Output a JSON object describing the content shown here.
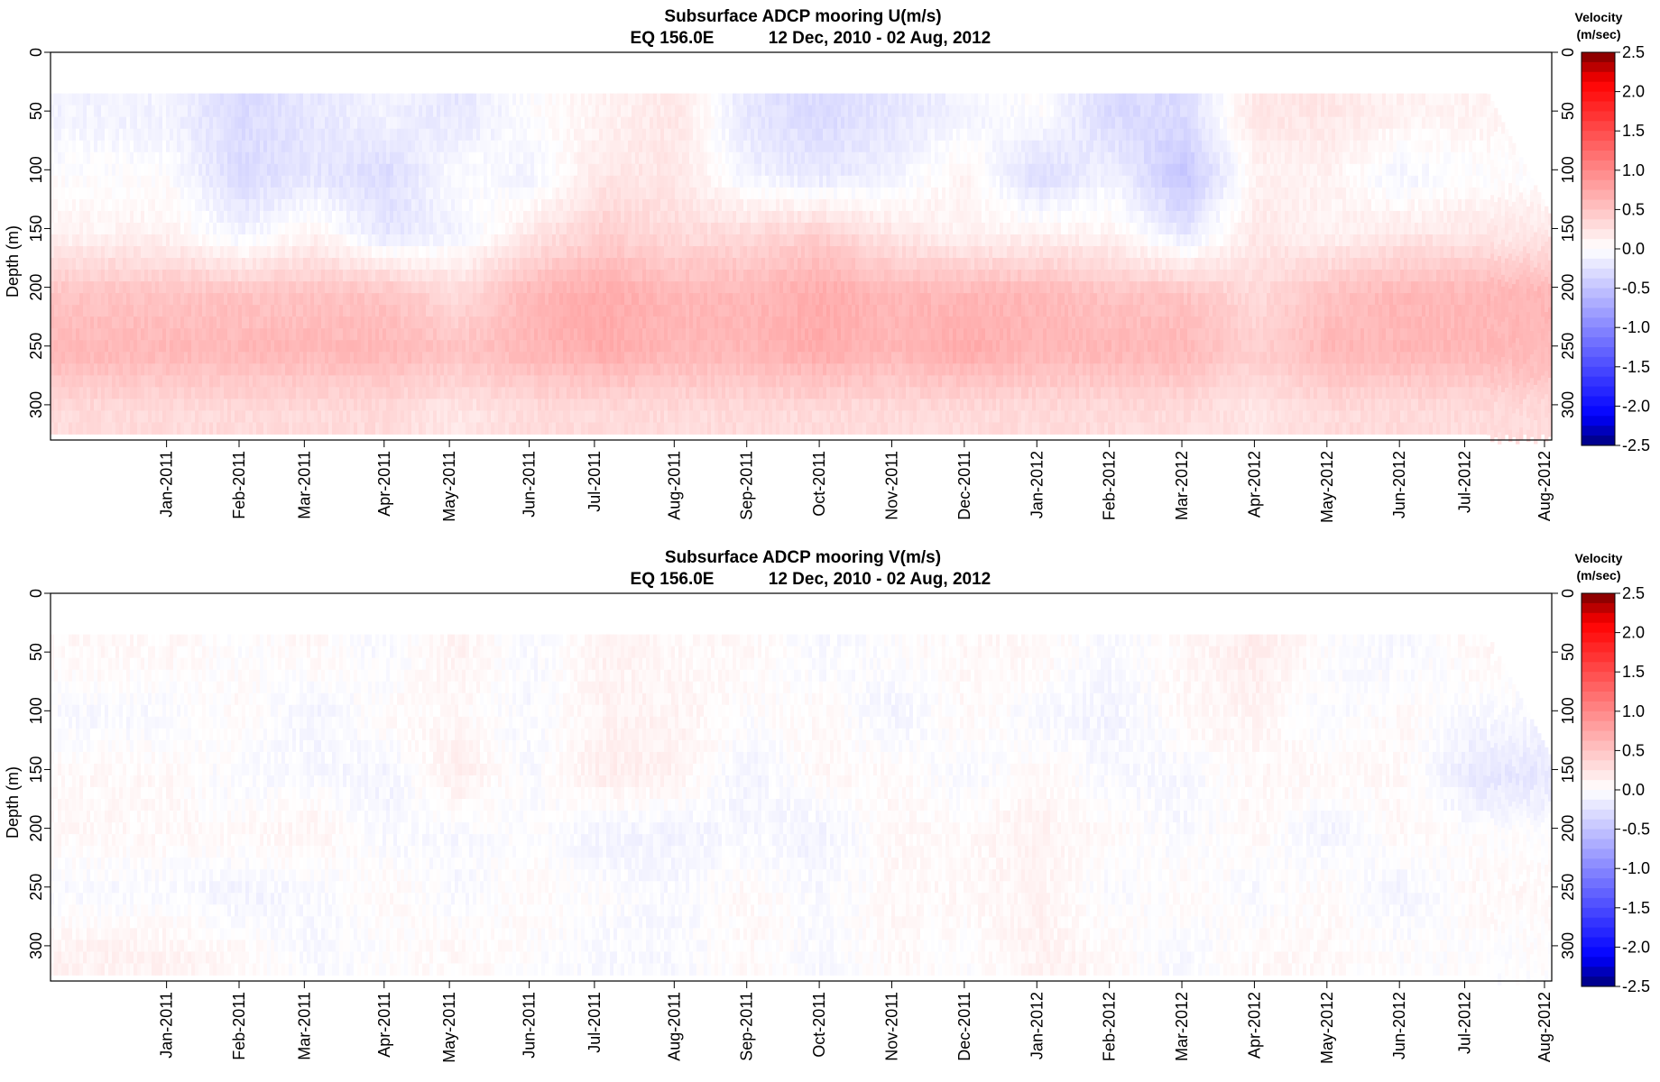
{
  "chart_data": [
    {
      "type": "heatmap",
      "title": "Subsurface ADCP mooring U(m/s)",
      "subtitle_location": "EQ 156.0E",
      "subtitle_period": "12 Dec, 2010 - 02 Aug, 2012",
      "ylabel": "Depth (m)",
      "ylim": [
        330,
        0
      ],
      "yticks": [
        "0",
        "50",
        "100",
        "150",
        "200",
        "250",
        "300"
      ],
      "xticks": [
        "Jan-2011",
        "Feb-2011",
        "Mar-2011",
        "Apr-2011",
        "May-2011",
        "Jun-2011",
        "Jul-2011",
        "Aug-2011",
        "Sep-2011",
        "Oct-2011",
        "Nov-2011",
        "Dec-2011",
        "Jan-2012",
        "Feb-2012",
        "Mar-2012",
        "Apr-2012",
        "May-2012",
        "Jun-2012",
        "Jul-2012",
        "Aug-2012"
      ],
      "xtick_months": [
        1.6,
        2.6,
        3.5,
        4.6,
        5.5,
        6.6,
        7.5,
        8.6,
        9.6,
        10.6,
        11.6,
        12.6,
        13.6,
        14.6,
        15.6,
        16.6,
        17.6,
        18.6,
        19.5,
        20.6
      ],
      "xlim_months": [
        0,
        20.7
      ],
      "data_depth_range": [
        35,
        325
      ],
      "colorbar": {
        "title": "Velocity",
        "unit": "(m/sec)",
        "range": [
          -2.5,
          2.5
        ],
        "ticks": [
          "2.5",
          "2.0",
          "1.5",
          "1.0",
          "0.5",
          "0.0",
          "-0.5",
          "-1.0",
          "-1.5",
          "-2.0",
          "-2.5"
        ]
      },
      "depth_levels": [
        50,
        100,
        150,
        200,
        250,
        300
      ],
      "months": [
        "Jan-2011",
        "Feb-2011",
        "Mar-2011",
        "Apr-2011",
        "May-2011",
        "Jun-2011",
        "Jul-2011",
        "Aug-2011",
        "Sep-2011",
        "Oct-2011",
        "Nov-2011",
        "Dec-2011",
        "Jan-2012",
        "Feb-2012",
        "Mar-2012",
        "Apr-2012",
        "May-2012",
        "Jun-2012",
        "Jul-2012"
      ],
      "values": [
        [
          -0.1,
          -0.3,
          -0.2,
          -0.1,
          -0.2,
          0.0,
          0.1,
          0.2,
          -0.2,
          -0.3,
          -0.2,
          -0.1,
          0.0,
          -0.3,
          -0.3,
          0.2,
          0.2,
          0.1,
          0.1
        ],
        [
          0.0,
          -0.3,
          -0.2,
          -0.3,
          0.0,
          -0.1,
          0.2,
          0.2,
          -0.1,
          -0.2,
          -0.1,
          0.1,
          -0.3,
          -0.1,
          -0.5,
          0.1,
          0.1,
          -0.1,
          0.0
        ],
        [
          0.1,
          -0.1,
          0.1,
          -0.2,
          -0.1,
          0.2,
          0.4,
          0.3,
          0.3,
          0.4,
          0.2,
          0.1,
          0.1,
          0.1,
          -0.2,
          0.2,
          0.1,
          0.2,
          0.2
        ],
        [
          0.5,
          0.5,
          0.5,
          0.5,
          0.3,
          0.6,
          0.7,
          0.6,
          0.6,
          0.7,
          0.6,
          0.6,
          0.6,
          0.5,
          0.5,
          0.3,
          0.5,
          0.6,
          0.6
        ],
        [
          0.6,
          0.6,
          0.6,
          0.6,
          0.5,
          0.6,
          0.7,
          0.6,
          0.6,
          0.7,
          0.6,
          0.7,
          0.6,
          0.6,
          0.6,
          0.4,
          0.6,
          0.6,
          0.6
        ],
        [
          0.3,
          0.3,
          0.3,
          0.3,
          0.2,
          0.3,
          0.3,
          0.3,
          0.3,
          0.3,
          0.3,
          0.3,
          0.3,
          0.3,
          0.3,
          0.2,
          0.3,
          0.3,
          0.3
        ]
      ]
    },
    {
      "type": "heatmap",
      "title": "Subsurface ADCP mooring V(m/s)",
      "subtitle_location": "EQ 156.0E",
      "subtitle_period": "12 Dec, 2010 - 02 Aug, 2012",
      "ylabel": "Depth (m)",
      "ylim": [
        330,
        0
      ],
      "yticks": [
        "0",
        "50",
        "100",
        "150",
        "200",
        "250",
        "300"
      ],
      "xticks": [
        "Jan-2011",
        "Feb-2011",
        "Mar-2011",
        "Apr-2011",
        "May-2011",
        "Jun-2011",
        "Jul-2011",
        "Aug-2011",
        "Sep-2011",
        "Oct-2011",
        "Nov-2011",
        "Dec-2011",
        "Jan-2012",
        "Feb-2012",
        "Mar-2012",
        "Apr-2012",
        "May-2012",
        "Jun-2012",
        "Jul-2012",
        "Aug-2012"
      ],
      "xtick_months": [
        1.6,
        2.6,
        3.5,
        4.6,
        5.5,
        6.6,
        7.5,
        8.6,
        9.6,
        10.6,
        11.6,
        12.6,
        13.6,
        14.6,
        15.6,
        16.6,
        17.6,
        18.6,
        19.5,
        20.6
      ],
      "xlim_months": [
        0,
        20.7
      ],
      "data_depth_range": [
        35,
        325
      ],
      "colorbar": {
        "title": "Velocity",
        "unit": "(m/sec)",
        "range": [
          -2.5,
          2.5
        ],
        "ticks": [
          "2.5",
          "2.0",
          "1.5",
          "1.0",
          "0.5",
          "0.0",
          "-0.5",
          "-1.0",
          "-1.5",
          "-2.0",
          "-2.5"
        ]
      },
      "depth_levels": [
        50,
        100,
        150,
        200,
        250,
        300
      ],
      "months": [
        "Jan-2011",
        "Feb-2011",
        "Mar-2011",
        "Apr-2011",
        "May-2011",
        "Jun-2011",
        "Jul-2011",
        "Aug-2011",
        "Sep-2011",
        "Oct-2011",
        "Nov-2011",
        "Dec-2011",
        "Jan-2012",
        "Feb-2012",
        "Mar-2012",
        "Apr-2012",
        "May-2012",
        "Jun-2012",
        "Jul-2012"
      ],
      "values": [
        [
          0.05,
          0.0,
          0.05,
          -0.05,
          0.1,
          -0.05,
          0.1,
          0.05,
          0.05,
          -0.05,
          0.0,
          0.05,
          0.05,
          -0.05,
          0.05,
          0.15,
          0.0,
          -0.05,
          0.05
        ],
        [
          -0.05,
          0.05,
          -0.1,
          0.05,
          0.05,
          -0.05,
          0.1,
          0.1,
          0.0,
          0.05,
          -0.1,
          0.05,
          -0.05,
          -0.1,
          0.05,
          0.1,
          -0.05,
          0.05,
          -0.05
        ],
        [
          0.05,
          -0.05,
          -0.05,
          -0.1,
          0.15,
          -0.05,
          0.15,
          0.1,
          -0.1,
          0.05,
          0.05,
          -0.05,
          0.05,
          -0.05,
          -0.05,
          0.05,
          0.05,
          0.05,
          -0.2
        ],
        [
          0.05,
          0.05,
          0.1,
          -0.05,
          -0.05,
          0.0,
          -0.1,
          -0.1,
          -0.05,
          -0.1,
          0.05,
          0.05,
          0.1,
          0.05,
          -0.05,
          0.05,
          -0.1,
          0.05,
          0.0
        ],
        [
          -0.05,
          -0.1,
          -0.05,
          0.05,
          -0.05,
          0.05,
          0.0,
          -0.05,
          0.05,
          -0.05,
          0.05,
          0.05,
          0.1,
          -0.05,
          0.05,
          -0.05,
          0.05,
          -0.1,
          0.05
        ],
        [
          0.1,
          0.05,
          -0.05,
          0.0,
          0.05,
          0.0,
          -0.05,
          -0.05,
          0.05,
          -0.05,
          0.05,
          0.0,
          0.1,
          0.05,
          -0.05,
          0.05,
          0.05,
          0.0,
          0.0
        ]
      ]
    }
  ]
}
